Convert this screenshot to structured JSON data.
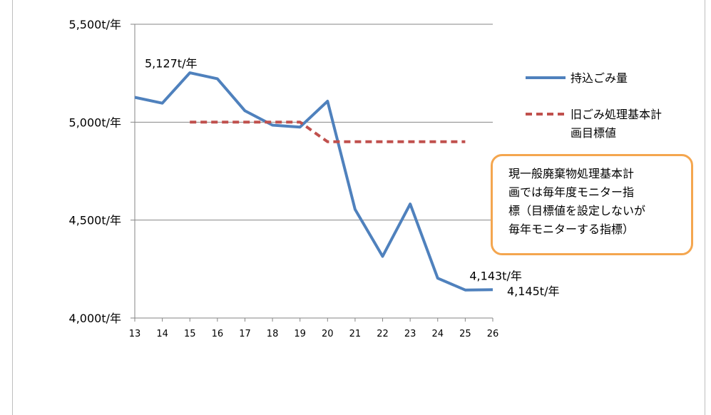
{
  "chart_data": {
    "type": "line",
    "x": [
      "13",
      "14",
      "15",
      "16",
      "17",
      "18",
      "19",
      "20",
      "21",
      "22",
      "23",
      "24",
      "25",
      "26"
    ],
    "yticks": [
      "4,000t/年",
      "4,500t/年",
      "5,000t/年",
      "5,500t/年"
    ],
    "ylim": [
      4000,
      5500
    ],
    "grid": true,
    "legend_position": "right",
    "series": [
      {
        "name": "持込ごみ量",
        "color": "#4f81bd",
        "style": "solid",
        "values": [
          5127,
          5097,
          5252,
          5222,
          5058,
          4985,
          4975,
          5107,
          4555,
          4315,
          4582,
          4203,
          4143,
          4145
        ]
      },
      {
        "name": "旧ごみ処理基本計画目標値",
        "legend_lines": [
          "旧ごみ処理基本計",
          "画目標値"
        ],
        "color": "#c0504d",
        "style": "dashed",
        "values": [
          null,
          null,
          5000,
          5000,
          5000,
          5000,
          5000,
          4900,
          4900,
          4900,
          4900,
          4900,
          4900,
          null
        ]
      }
    ],
    "data_labels": [
      {
        "text": "5,127t/年",
        "series": 0,
        "index": 0
      },
      {
        "text": "4,143t/年",
        "series": 0,
        "index": 12
      },
      {
        "text": "4,145t/年",
        "series": 0,
        "index": 13
      }
    ],
    "note": "現一般廃棄物処理基本計\n画では毎年度モニター指\n標（目標値を設定しないが\n毎年モニターする指標）"
  }
}
